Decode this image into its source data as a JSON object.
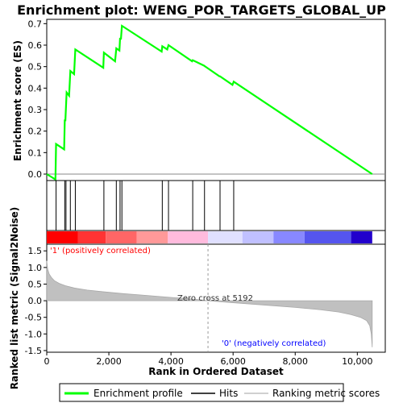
{
  "chart_data": {
    "type": "line",
    "title": "Enrichment plot: WENG_POR_TARGETS_GLOBAL_UP",
    "top_panel": {
      "ylabel": "Enrichment score (ES)",
      "ylim": [
        -0.03,
        0.72
      ],
      "yticks": [
        "0.0",
        "0.1",
        "0.2",
        "0.3",
        "0.4",
        "0.5",
        "0.6",
        "0.7"
      ],
      "ytick_values": [
        0.0,
        0.1,
        0.2,
        0.3,
        0.4,
        0.5,
        0.6,
        0.7
      ],
      "series": [
        {
          "name": "Enrichment profile",
          "color": "#00ff00",
          "x": [
            0,
            280,
            300,
            560,
            580,
            600,
            640,
            720,
            760,
            880,
            920,
            1820,
            1840,
            2200,
            2240,
            2340,
            2360,
            2390,
            2420,
            3700,
            3720,
            3880,
            3920,
            4680,
            4700,
            5060,
            5560,
            5580,
            5980,
            6020,
            10480
          ],
          "y": [
            0.0,
            -0.025,
            0.14,
            0.115,
            0.25,
            0.25,
            0.38,
            0.365,
            0.48,
            0.465,
            0.58,
            0.495,
            0.565,
            0.525,
            0.585,
            0.575,
            0.63,
            0.63,
            0.69,
            0.57,
            0.595,
            0.58,
            0.6,
            0.525,
            0.53,
            0.505,
            0.455,
            0.455,
            0.415,
            0.43,
            0.0
          ]
        }
      ]
    },
    "hits": {
      "name": "Hits",
      "positions": [
        300,
        580,
        620,
        760,
        920,
        1840,
        2240,
        2360,
        2420,
        3720,
        3920,
        4700,
        5080,
        5580,
        6020
      ]
    },
    "ranking_panel": {
      "ylabel": "Ranked list metric (Signal2Noise)",
      "xlabel": "Rank in Ordered Dataset",
      "ylim": [
        -1.55,
        1.7
      ],
      "yticks": [
        "-1.5",
        "-1.0",
        "-0.5",
        "0.0",
        "0.5",
        "1.0",
        "1.5"
      ],
      "ytick_values": [
        -1.5,
        -1.0,
        -0.5,
        0.0,
        0.5,
        1.0,
        1.5
      ],
      "xticks": [
        "0",
        "2,000",
        "4,000",
        "6,000",
        "8,000",
        "10,000"
      ],
      "xtick_values": [
        0,
        2000,
        4000,
        6000,
        8000,
        10000
      ],
      "xlim": [
        0,
        10900
      ],
      "n_genes": 10500,
      "zero_cross": 5192,
      "zero_cross_label": "Zero cross at 5192",
      "positive_label": "'1' (positively correlated)",
      "negative_label": "'0' (negatively correlated)",
      "metric_x": [
        0,
        30,
        80,
        150,
        250,
        400,
        600,
        900,
        1300,
        1800,
        2500,
        3200,
        4000,
        4700,
        5192,
        6000,
        7000,
        8000,
        8800,
        9400,
        9800,
        10100,
        10300,
        10400,
        10450,
        10480
      ],
      "metric_y": [
        1.2,
        0.95,
        0.8,
        0.7,
        0.6,
        0.52,
        0.45,
        0.38,
        0.32,
        0.27,
        0.21,
        0.16,
        0.1,
        0.05,
        0.0,
        -0.06,
        -0.13,
        -0.2,
        -0.27,
        -0.34,
        -0.42,
        -0.5,
        -0.6,
        -0.75,
        -1.0,
        -1.4
      ]
    },
    "legend": {
      "position": "bottom",
      "items": [
        {
          "label": "Enrichment profile",
          "color": "#00ff00"
        },
        {
          "label": "Hits",
          "color": "#000000"
        },
        {
          "label": "Ranking metric scores",
          "color": "#c0c0c0"
        }
      ]
    },
    "colors": {
      "profile": "#00ff00",
      "metric_fill": "#c0c0c0",
      "positive_text": "#ff0000",
      "negative_text": "#0000ff"
    },
    "colorbar": [
      {
        "from": 0,
        "to": 1000,
        "color": "#ff0000"
      },
      {
        "from": 1000,
        "to": 1900,
        "color": "#ff3333"
      },
      {
        "from": 1900,
        "to": 2900,
        "color": "#ff6666"
      },
      {
        "from": 2900,
        "to": 3900,
        "color": "#ff9999"
      },
      {
        "from": 3900,
        "to": 5192,
        "color": "#ffbbdd"
      },
      {
        "from": 5192,
        "to": 6300,
        "color": "#e0e0ff"
      },
      {
        "from": 6300,
        "to": 7300,
        "color": "#c0c0ff"
      },
      {
        "from": 7300,
        "to": 8300,
        "color": "#8888ff"
      },
      {
        "from": 8300,
        "to": 9800,
        "color": "#5555ee"
      },
      {
        "from": 9800,
        "to": 10480,
        "color": "#2200cc"
      }
    ]
  }
}
